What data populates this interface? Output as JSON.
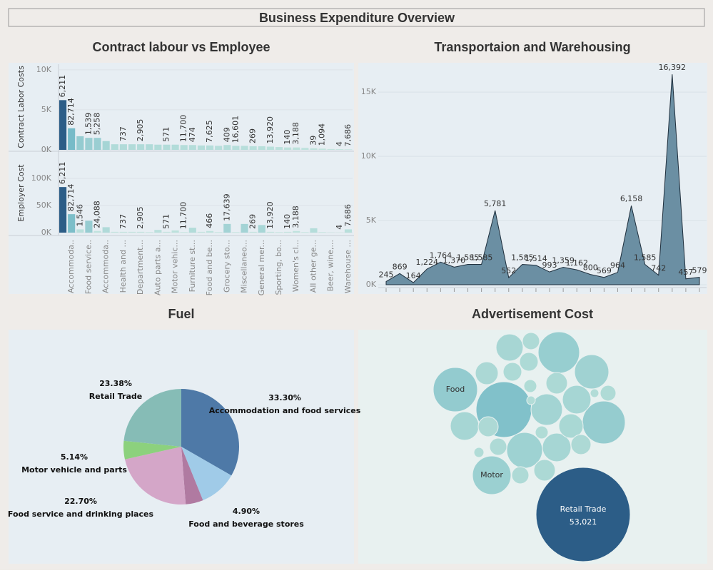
{
  "title": "Business Expenditure Overview",
  "chart_data": [
    {
      "type": "bar",
      "title": "Contract labour vs Employee",
      "categories": [
        null,
        "Accommoda..",
        null,
        "Food service..",
        null,
        "Accommoda..",
        null,
        "Health and ...",
        null,
        "Department...",
        null,
        "Auto parts a...",
        null,
        "Motor vehic...",
        null,
        "Furniture st...",
        null,
        "Food and be...",
        null,
        "Grocery sto...",
        null,
        "Miscellaneo...",
        null,
        "General mer...",
        null,
        "Sporting, bo...",
        null,
        "Women's cl...",
        null,
        "All other ge...",
        null,
        "Beer, wine,...",
        null,
        "Warehouse ..."
      ],
      "color_scale": [
        "#c5e6df",
        "#6bb5c4",
        "#2c5d87"
      ],
      "series": [
        {
          "name": "Contract Labor Costs",
          "values": [
            6211,
            2700,
            1700,
            1500,
            1500,
            1100,
            700,
            700,
            700,
            700,
            700,
            650,
            650,
            650,
            600,
            600,
            550,
            550,
            500,
            600,
            500,
            500,
            450,
            450,
            400,
            350,
            300,
            300,
            250,
            200,
            150,
            100,
            80,
            60
          ],
          "labels": [
            "6,211",
            "82,714",
            null,
            "1,539",
            "5,258",
            null,
            null,
            "737",
            null,
            "2,905",
            null,
            null,
            "571",
            null,
            "11,700",
            "474",
            null,
            "7,625",
            null,
            "409",
            "16,601",
            null,
            "269",
            null,
            "13,920",
            null,
            "140",
            "3,188",
            null,
            "39",
            "1,094",
            null,
            "4",
            "7,686"
          ],
          "ylim": [
            0,
            10700
          ],
          "yticks": [
            {
              "value": 0,
              "label": "0K"
            },
            {
              "value": 5000,
              "label": "5K"
            },
            {
              "value": 10000,
              "label": "10K"
            }
          ]
        },
        {
          "name": "Employer Cost",
          "values": [
            84000,
            34000,
            6000,
            22000,
            3000,
            10000,
            1500,
            1500,
            1500,
            1500,
            1000,
            5000,
            1500,
            4000,
            1000,
            9000,
            1500,
            3000,
            1000,
            16000,
            1000,
            16000,
            1500,
            14000,
            1500,
            1000,
            1500,
            3000,
            1000,
            8000,
            1000,
            500,
            300,
            6000
          ],
          "labels": [
            "6,211",
            "82,714",
            "1,546",
            null,
            "24,088",
            null,
            null,
            "737",
            null,
            "2,905",
            null,
            null,
            "571",
            null,
            "11,700",
            null,
            null,
            "466",
            null,
            "17,639",
            null,
            null,
            "269",
            null,
            "13,920",
            null,
            "140",
            "3,188",
            null,
            null,
            null,
            null,
            "4",
            "7,686"
          ],
          "ylim": [
            0,
            146000
          ],
          "yticks": [
            {
              "value": 0,
              "label": "0K"
            },
            {
              "value": 50000,
              "label": "50K"
            },
            {
              "value": 100000,
              "label": "100K"
            }
          ]
        }
      ]
    },
    {
      "type": "area",
      "title": "Transportaion and Warehousing",
      "categories": [
        null,
        null,
        null,
        null,
        null,
        null,
        null,
        null,
        null,
        null,
        null,
        null,
        null,
        null,
        null,
        null,
        null,
        null,
        null,
        null,
        null,
        null,
        null,
        null
      ],
      "values": [
        245,
        869,
        164,
        1224,
        1764,
        1370,
        1585,
        1585,
        5781,
        552,
        1585,
        1514,
        993,
        1359,
        1162,
        800,
        569,
        964,
        6158,
        1585,
        742,
        16392,
        457,
        579
      ],
      "value_labels": [
        "245",
        "869",
        "164",
        "1,224",
        "1,764",
        "1,370",
        "1,585",
        "1,585",
        "5,781",
        "552",
        "1,585",
        "1,514",
        "993",
        "1,359",
        "1,162",
        "800",
        "569",
        "964",
        "6,158",
        "1,585",
        "742",
        "16,392",
        "457",
        "579"
      ],
      "ylim": [
        0,
        16900
      ],
      "yticks": [
        {
          "value": 0,
          "label": "0K"
        },
        {
          "value": 5000,
          "label": "5K"
        },
        {
          "value": 10000,
          "label": "10K"
        },
        {
          "value": 15000,
          "label": "15K"
        }
      ],
      "color": "#6b8fa3",
      "line_color": "#1f2f3d",
      "grid": true
    },
    {
      "type": "pie",
      "title": "Fuel",
      "categories": [
        "Accommodation and food services",
        null,
        "Food and beverage stores",
        "Food service and drinking places",
        "Motor vehicle and parts",
        "Retail Trade"
      ],
      "values": [
        33.3,
        10.58,
        4.9,
        22.7,
        5.14,
        23.38
      ],
      "value_labels": [
        "33.30%",
        null,
        "4.90%",
        "22.70%",
        "5.14%",
        "23.38%"
      ],
      "colors": [
        "#4e79a7",
        "#a0cbe8",
        "#b07aa1",
        "#d4a6c8",
        "#8cd17d",
        "#86bcb6"
      ]
    },
    {
      "type": "bubble",
      "title": "Advertisement Cost",
      "categories": [
        "Retail Trade",
        "Food",
        null,
        "Motor",
        null,
        null,
        null,
        null,
        null,
        null,
        null,
        null,
        null,
        null,
        null,
        null,
        null,
        null,
        null,
        null,
        null,
        null,
        null,
        null,
        null,
        null,
        null,
        null,
        null,
        null
      ],
      "values": [
        53021,
        11696,
        18513,
        8873,
        10237,
        7011,
        10955,
        5891,
        7609,
        4869,
        4869,
        3518,
        4394,
        1753,
        2057,
        2057,
        3116,
        4869,
        2386,
        2739,
        2386,
        2739,
        1753,
        1753,
        986,
        1473,
        438,
        986,
        596,
        438
      ],
      "value_labels": [
        "53,021",
        null,
        null,
        null,
        null,
        null,
        null,
        null,
        null,
        null,
        null,
        null,
        null,
        null,
        null,
        null,
        null,
        null,
        null,
        null,
        null,
        null,
        null,
        null,
        null,
        null,
        null,
        null,
        null,
        null
      ],
      "color_scale": [
        "#b3ddd7",
        "#6bb5c4",
        "#2c5d87"
      ]
    }
  ]
}
